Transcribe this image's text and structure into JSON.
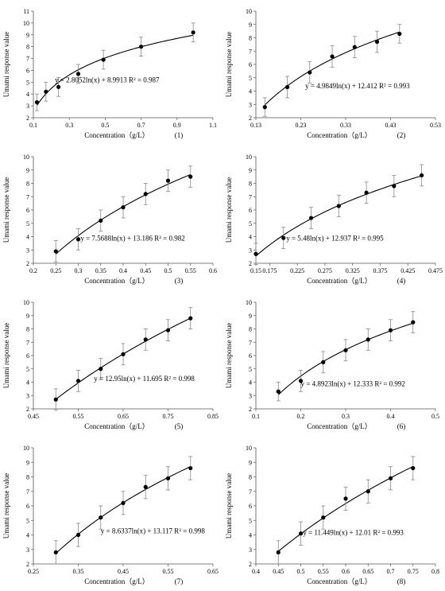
{
  "chart_data": [
    {
      "type": "scatter",
      "panel_label": "(1)",
      "xlabel": "Concentration（g/L）",
      "ylabel": "Umami response value",
      "xlim": [
        0.1,
        1.1
      ],
      "ylim": [
        2,
        11
      ],
      "xticks": [
        "0.1",
        "0.3",
        "0.5",
        "0.7",
        "0.9",
        "1.1"
      ],
      "yticks": [
        "2",
        "3",
        "4",
        "5",
        "6",
        "7",
        "8",
        "9",
        "10",
        "11"
      ],
      "equation": "y = 2.8052ln(x) + 8.9913  R² = 0.987",
      "fit": {
        "a": 2.8052,
        "b": 8.9913
      },
      "points": [
        {
          "x": 0.12,
          "y": 3.3,
          "err": 0.7
        },
        {
          "x": 0.17,
          "y": 4.2,
          "err": 0.8
        },
        {
          "x": 0.24,
          "y": 4.6,
          "err": 0.8
        },
        {
          "x": 0.35,
          "y": 5.7,
          "err": 0.8
        },
        {
          "x": 0.49,
          "y": 6.9,
          "err": 0.8
        },
        {
          "x": 0.7,
          "y": 8.0,
          "err": 0.8
        },
        {
          "x": 0.99,
          "y": 9.2,
          "err": 0.8
        }
      ]
    },
    {
      "type": "scatter",
      "panel_label": "(2)",
      "xlabel": "Concentration（g/L）",
      "ylabel": "Umami response value",
      "xlim": [
        0.13,
        0.53
      ],
      "ylim": [
        2,
        10
      ],
      "xticks": [
        "0.13",
        "0.23",
        "0.33",
        "0.43",
        "0.53"
      ],
      "yticks": [
        "2",
        "3",
        "4",
        "5",
        "6",
        "7",
        "8",
        "9",
        "10"
      ],
      "equation": "y = 4.9849ln(x) + 12.412  R² = 0.993",
      "fit": {
        "a": 4.9849,
        "b": 12.412
      },
      "points": [
        {
          "x": 0.15,
          "y": 2.8,
          "err": 0.7
        },
        {
          "x": 0.2,
          "y": 4.3,
          "err": 0.8
        },
        {
          "x": 0.25,
          "y": 5.4,
          "err": 0.8
        },
        {
          "x": 0.3,
          "y": 6.6,
          "err": 0.8
        },
        {
          "x": 0.35,
          "y": 7.3,
          "err": 0.8
        },
        {
          "x": 0.4,
          "y": 7.7,
          "err": 0.8
        },
        {
          "x": 0.45,
          "y": 8.3,
          "err": 0.7
        }
      ]
    },
    {
      "type": "scatter",
      "panel_label": "(3)",
      "xlabel": "Concentration（g/L）",
      "ylabel": "Umami response value",
      "xlim": [
        0.2,
        0.6
      ],
      "ylim": [
        2,
        10
      ],
      "xticks": [
        "0.2",
        "0.25",
        "0.3",
        "0.35",
        "0.4",
        "0.45",
        "0.5",
        "0.55",
        "0.6"
      ],
      "yticks": [
        "2",
        "3",
        "4",
        "5",
        "6",
        "7",
        "8",
        "9",
        "10"
      ],
      "equation": "y = 7.5688ln(x) + 13.186  R² = 0.982",
      "fit": {
        "a": 7.5688,
        "b": 13.186
      },
      "points": [
        {
          "x": 0.25,
          "y": 2.9,
          "err": 0.8
        },
        {
          "x": 0.3,
          "y": 3.8,
          "err": 0.8
        },
        {
          "x": 0.35,
          "y": 5.2,
          "err": 0.8
        },
        {
          "x": 0.4,
          "y": 6.2,
          "err": 0.8
        },
        {
          "x": 0.45,
          "y": 7.2,
          "err": 0.8
        },
        {
          "x": 0.5,
          "y": 8.2,
          "err": 0.8
        },
        {
          "x": 0.55,
          "y": 8.5,
          "err": 0.8
        }
      ]
    },
    {
      "type": "scatter",
      "panel_label": "(4)",
      "xlabel": "Concentration（g/L）",
      "ylabel": "Umami response value",
      "xlim": [
        0.15,
        0.475
      ],
      "ylim": [
        2,
        10
      ],
      "xticks": [
        "0.15",
        "0.175",
        "0.225",
        "0.275",
        "0.325",
        "0.375",
        "0.425",
        "0.475"
      ],
      "xtick_values": [
        0.15,
        0.175,
        0.225,
        0.275,
        0.325,
        0.375,
        0.425,
        0.475
      ],
      "yticks": [
        "2",
        "3",
        "4",
        "5",
        "6",
        "7",
        "8",
        "9",
        "10"
      ],
      "equation": "y = 5.48ln(x) + 12.937  R² = 0.995",
      "fit": {
        "a": 5.48,
        "b": 12.937
      },
      "points": [
        {
          "x": 0.15,
          "y": 2.7,
          "err": 0.8
        },
        {
          "x": 0.2,
          "y": 3.9,
          "err": 0.8
        },
        {
          "x": 0.25,
          "y": 5.4,
          "err": 0.8
        },
        {
          "x": 0.3,
          "y": 6.3,
          "err": 0.8
        },
        {
          "x": 0.35,
          "y": 7.3,
          "err": 0.8
        },
        {
          "x": 0.4,
          "y": 7.8,
          "err": 0.8
        },
        {
          "x": 0.45,
          "y": 8.6,
          "err": 0.8
        }
      ]
    },
    {
      "type": "scatter",
      "panel_label": "(5)",
      "xlabel": "Concentration（g/L）",
      "ylabel": "Umami response value",
      "xlim": [
        0.45,
        0.85
      ],
      "ylim": [
        2,
        10
      ],
      "xticks": [
        "0.45",
        "0.55",
        "0.65",
        "0.75",
        "0.85"
      ],
      "yticks": [
        "2",
        "3",
        "4",
        "5",
        "6",
        "7",
        "8",
        "9",
        "10"
      ],
      "equation": "y = 12.95ln(x) + 11.695 R² = 0.998",
      "fit": {
        "a": 12.95,
        "b": 11.695
      },
      "points": [
        {
          "x": 0.5,
          "y": 2.7,
          "err": 0.8
        },
        {
          "x": 0.55,
          "y": 4.1,
          "err": 0.8
        },
        {
          "x": 0.6,
          "y": 5.0,
          "err": 0.8
        },
        {
          "x": 0.65,
          "y": 6.1,
          "err": 0.8
        },
        {
          "x": 0.7,
          "y": 7.2,
          "err": 0.8
        },
        {
          "x": 0.75,
          "y": 7.9,
          "err": 0.8
        },
        {
          "x": 0.8,
          "y": 8.8,
          "err": 0.8
        }
      ]
    },
    {
      "type": "scatter",
      "panel_label": "(6)",
      "xlabel": "Concentration（g/L）",
      "ylabel": "Umami response value",
      "xlim": [
        0.1,
        0.5
      ],
      "ylim": [
        2,
        10
      ],
      "xticks": [
        "0.1",
        "0.2",
        "0.3",
        "0.4",
        "0.5"
      ],
      "yticks": [
        "2",
        "3",
        "4",
        "5",
        "6",
        "7",
        "8",
        "9",
        "10"
      ],
      "equation": "y = 4.8923ln(x) + 12.333  R² = 0.992",
      "fit": {
        "a": 4.8923,
        "b": 12.333
      },
      "points": [
        {
          "x": 0.15,
          "y": 3.3,
          "err": 0.7
        },
        {
          "x": 0.2,
          "y": 4.1,
          "err": 0.8
        },
        {
          "x": 0.25,
          "y": 5.5,
          "err": 0.8
        },
        {
          "x": 0.3,
          "y": 6.4,
          "err": 0.8
        },
        {
          "x": 0.35,
          "y": 7.2,
          "err": 0.8
        },
        {
          "x": 0.4,
          "y": 7.9,
          "err": 0.8
        },
        {
          "x": 0.45,
          "y": 8.5,
          "err": 0.8
        }
      ]
    },
    {
      "type": "scatter",
      "panel_label": "(7)",
      "xlabel": "Concentration（g/L）",
      "ylabel": "Umami response value",
      "xlim": [
        0.25,
        0.65
      ],
      "ylim": [
        2,
        10
      ],
      "xticks": [
        "0.25",
        "0.35",
        "0.45",
        "0.55",
        "0.65"
      ],
      "yticks": [
        "2",
        "3",
        "4",
        "5",
        "6",
        "7",
        "8",
        "9",
        "10"
      ],
      "equation": "y = 8.6337ln(x) + 13.117 R² = 0.998",
      "fit": {
        "a": 8.6337,
        "b": 13.117
      },
      "points": [
        {
          "x": 0.3,
          "y": 2.8,
          "err": 0.8
        },
        {
          "x": 0.35,
          "y": 4.0,
          "err": 0.8
        },
        {
          "x": 0.4,
          "y": 5.2,
          "err": 0.8
        },
        {
          "x": 0.45,
          "y": 6.2,
          "err": 0.8
        },
        {
          "x": 0.5,
          "y": 7.3,
          "err": 0.8
        },
        {
          "x": 0.55,
          "y": 7.9,
          "err": 0.8
        },
        {
          "x": 0.6,
          "y": 8.6,
          "err": 0.8
        }
      ]
    },
    {
      "type": "scatter",
      "panel_label": "(8)",
      "xlabel": "Concentration（g/L）",
      "ylabel": "Umami response value",
      "xlim": [
        0.4,
        0.8
      ],
      "ylim": [
        2,
        10
      ],
      "xticks": [
        "0.4",
        "0.45",
        "0.5",
        "0.55",
        "0.6",
        "0.65",
        "0.7",
        "0.75",
        "0.8"
      ],
      "yticks": [
        "2",
        "3",
        "4",
        "5",
        "6",
        "7",
        "8",
        "9",
        "10"
      ],
      "equation": "y = 11.449ln(x) + 12.01  R² = 0.993",
      "fit": {
        "a": 11.449,
        "b": 12.01
      },
      "points": [
        {
          "x": 0.45,
          "y": 2.8,
          "err": 0.8
        },
        {
          "x": 0.5,
          "y": 4.1,
          "err": 0.8
        },
        {
          "x": 0.55,
          "y": 5.2,
          "err": 0.8
        },
        {
          "x": 0.6,
          "y": 6.5,
          "err": 0.8
        },
        {
          "x": 0.65,
          "y": 7.0,
          "err": 0.8
        },
        {
          "x": 0.7,
          "y": 7.9,
          "err": 0.8
        },
        {
          "x": 0.75,
          "y": 8.6,
          "err": 0.8
        }
      ]
    }
  ]
}
